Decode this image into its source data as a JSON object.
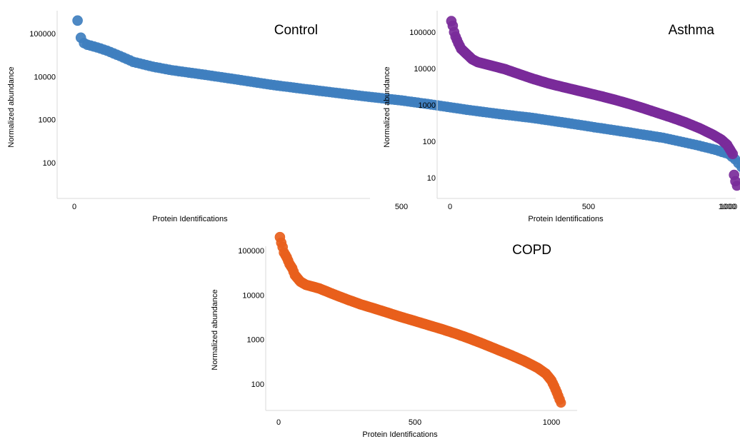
{
  "chart_data": [
    {
      "type": "scatter",
      "title": "Control",
      "xlabel": "Protein Identifications",
      "ylabel": "Normalized abundance",
      "x_ticks": [
        0,
        500,
        1000
      ],
      "y_ticks": [
        100,
        1000,
        10000,
        100000
      ],
      "y_scale": "log",
      "xlim": [
        -60,
        1050
      ],
      "ylim": [
        20,
        300000
      ],
      "grid": false,
      "color": "#3f7fbf",
      "series": [
        {
          "x": [
            5,
            10,
            15,
            20,
            30,
            40,
            50,
            70,
            90,
            120,
            150,
            200,
            250,
            300,
            350,
            400,
            450,
            500,
            550,
            600,
            650,
            700,
            750,
            800,
            850,
            900,
            950,
            980,
            1000,
            1010,
            1020,
            1030,
            1035
          ],
          "y": [
            200000,
            80000,
            60000,
            55000,
            50000,
            45000,
            40000,
            30000,
            22000,
            17000,
            14000,
            11000,
            8500,
            6500,
            5200,
            4200,
            3400,
            2800,
            2200,
            1700,
            1350,
            1100,
            850,
            650,
            500,
            380,
            260,
            200,
            160,
            120,
            80,
            45,
            30
          ]
        }
      ]
    },
    {
      "type": "scatter",
      "title": "Asthma",
      "xlabel": "Protein Identifications",
      "ylabel": "Normalized abundance",
      "x_ticks": [
        0,
        500,
        1000
      ],
      "y_ticks": [
        10,
        100,
        1000,
        10000,
        100000
      ],
      "y_scale": "log",
      "xlim": [
        -60,
        1050
      ],
      "ylim": [
        4,
        300000
      ],
      "grid": false,
      "color": "#7a2b9a",
      "series": [
        {
          "x": [
            5,
            10,
            15,
            20,
            30,
            40,
            60,
            80,
            100,
            150,
            200,
            250,
            300,
            350,
            400,
            450,
            500,
            550,
            600,
            650,
            700,
            750,
            800,
            850,
            900,
            950,
            980,
            1000,
            1010,
            1020,
            1025,
            1030,
            1035
          ],
          "y": [
            200000,
            150000,
            100000,
            75000,
            50000,
            35000,
            25000,
            18000,
            15000,
            12000,
            9500,
            7000,
            5200,
            4000,
            3200,
            2600,
            2100,
            1700,
            1350,
            1050,
            800,
            600,
            450,
            330,
            230,
            150,
            110,
            80,
            60,
            45,
            12,
            8,
            6
          ]
        }
      ]
    },
    {
      "type": "scatter",
      "title": "COPD",
      "xlabel": "Protein Identifications",
      "ylabel": "Normalized abundance",
      "x_ticks": [
        0,
        500,
        1000
      ],
      "y_ticks": [
        100,
        1000,
        10000,
        100000
      ],
      "y_scale": "log",
      "xlim": [
        -60,
        1050
      ],
      "ylim": [
        25,
        300000
      ],
      "grid": false,
      "color": "#e8601c",
      "series": [
        {
          "x": [
            5,
            10,
            15,
            20,
            30,
            40,
            50,
            60,
            80,
            100,
            150,
            200,
            250,
            300,
            350,
            400,
            450,
            500,
            550,
            600,
            650,
            700,
            750,
            800,
            850,
            900,
            950,
            980,
            1000,
            1010,
            1020,
            1030,
            1035
          ],
          "y": [
            200000,
            150000,
            120000,
            90000,
            70000,
            50000,
            40000,
            28000,
            20000,
            17000,
            14000,
            10500,
            8000,
            6200,
            5000,
            4000,
            3200,
            2600,
            2100,
            1700,
            1350,
            1050,
            800,
            600,
            450,
            330,
            230,
            170,
            120,
            90,
            65,
            45,
            38
          ]
        }
      ]
    }
  ]
}
